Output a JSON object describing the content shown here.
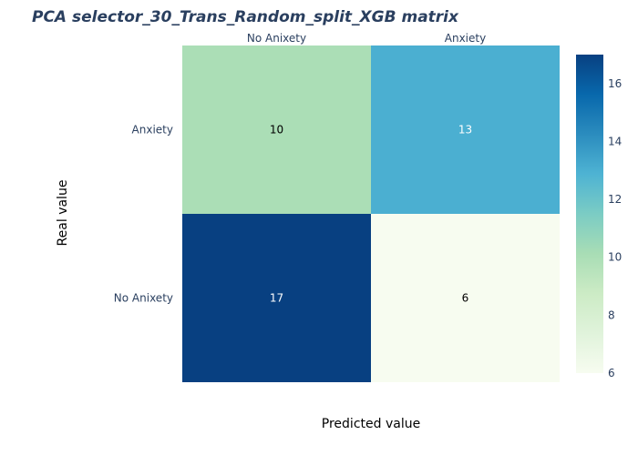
{
  "chart_data": {
    "type": "heatmap",
    "title": "PCA selector_30_Trans_Random_split_XGB matrix",
    "xlabel": "Predicted value",
    "ylabel": "Real value",
    "x_categories": [
      "No Anixety",
      "Anxiety"
    ],
    "y_categories": [
      "Anxiety",
      "No Anixety"
    ],
    "z": [
      [
        10,
        13
      ],
      [
        17,
        6
      ]
    ],
    "colorscale": "GnBu",
    "colorbar": {
      "zmin": 6,
      "zmax": 17,
      "ticks": [
        6,
        8,
        10,
        12,
        14,
        16
      ]
    },
    "grid": false
  }
}
